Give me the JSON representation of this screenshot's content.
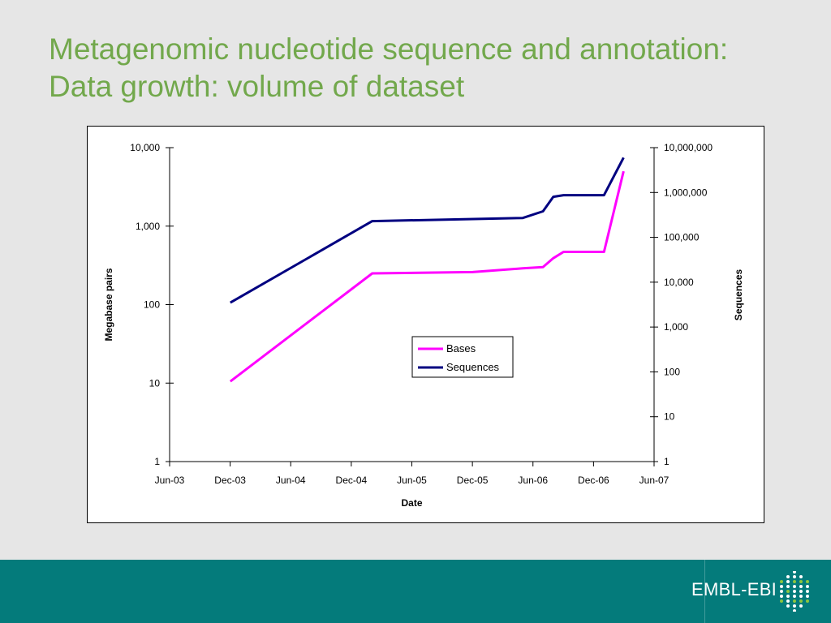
{
  "slide": {
    "title_line1": "Metagenomic nucleotide sequence and annotation:",
    "title_line2": "Data growth: volume of dataset"
  },
  "footer": {
    "brand": "EMBL-EBI",
    "background_color": "#047b7b"
  },
  "chart_data": {
    "type": "line",
    "title": "",
    "xlabel": "Date",
    "ylabel_left": "Megabase pairs",
    "ylabel_right": "Sequences",
    "x_tick_labels": [
      "Jun-03",
      "Dec-03",
      "Jun-04",
      "Dec-04",
      "Jun-05",
      "Dec-05",
      "Jun-06",
      "Dec-06",
      "Jun-07"
    ],
    "x_range": [
      "2003-06",
      "2007-06"
    ],
    "y_left": {
      "scale": "log",
      "range": [
        1,
        10000
      ],
      "tick_labels": [
        "1",
        "10",
        "100",
        "1,000",
        "10,000"
      ]
    },
    "y_right": {
      "scale": "log",
      "range": [
        1,
        10000000
      ],
      "tick_labels": [
        "1",
        "10",
        "100",
        "1,000",
        "10,000",
        "100,000",
        "1,000,000",
        "10,000,000"
      ]
    },
    "legend": {
      "placement": "center",
      "entries": [
        "Bases",
        "Sequences"
      ]
    },
    "grid": false,
    "series": [
      {
        "name": "Bases",
        "axis": "left",
        "color": "#ff00ff",
        "points": [
          [
            "2003-12-01",
            10.5
          ],
          [
            "2005-02-01",
            250
          ],
          [
            "2005-12-01",
            260
          ],
          [
            "2006-05-01",
            290
          ],
          [
            "2006-07-01",
            300
          ],
          [
            "2006-08-01",
            390
          ],
          [
            "2006-09-01",
            470
          ],
          [
            "2007-01-01",
            470
          ],
          [
            "2007-03-01",
            5000
          ]
        ]
      },
      {
        "name": "Sequences",
        "axis": "right",
        "color": "#000080",
        "points": [
          [
            "2003-12-01",
            3500
          ],
          [
            "2005-02-01",
            230000
          ],
          [
            "2006-05-01",
            270000
          ],
          [
            "2006-07-01",
            380000
          ],
          [
            "2006-08-01",
            800000
          ],
          [
            "2006-09-01",
            870000
          ],
          [
            "2007-01-01",
            870000
          ],
          [
            "2007-03-01",
            6000000
          ]
        ]
      }
    ]
  }
}
